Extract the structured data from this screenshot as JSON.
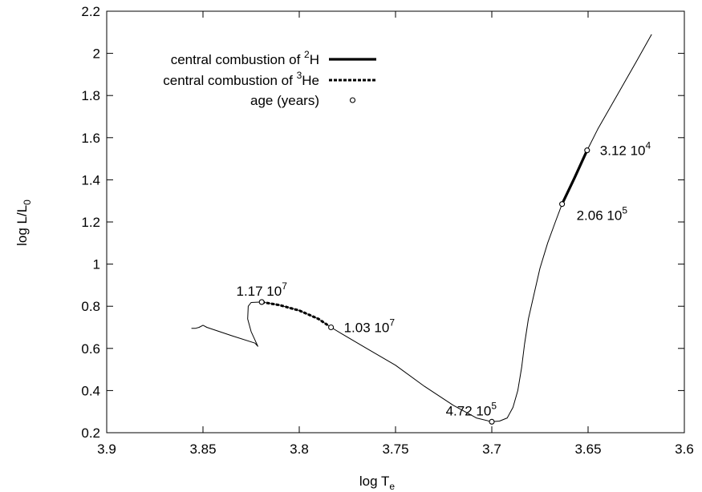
{
  "chart_data": {
    "type": "line",
    "xlabel": {
      "base": "log T",
      "sub": "e"
    },
    "ylabel": {
      "base": "log L/L",
      "sub": "0"
    },
    "xlim": [
      3.9,
      3.6
    ],
    "ylim": [
      0.2,
      2.2
    ],
    "x_reversed": true,
    "xticks": [
      3.9,
      3.85,
      3.8,
      3.75,
      3.7,
      3.65,
      3.6
    ],
    "xtick_labels": [
      "3.9",
      "3.85",
      "3.8",
      "3.75",
      "3.7",
      "3.65",
      "3.6"
    ],
    "yticks": [
      0.2,
      0.4,
      0.6,
      0.8,
      1.0,
      1.2,
      1.4,
      1.6,
      1.8,
      2.0,
      2.2
    ],
    "ytick_labels": [
      "0.2",
      "0.4",
      "0.6",
      "0.8",
      "1",
      "1.2",
      "1.4",
      "1.6",
      "1.8",
      "2",
      "2.2"
    ],
    "grid": false,
    "legend_position": "top-left",
    "legend": [
      {
        "key": "deuterium",
        "text": "central combustion of ",
        "sup": "2",
        "suffix": "H",
        "style": "solid-thick"
      },
      {
        "key": "helium3",
        "text": "central combustion of ",
        "sup": "3",
        "suffix": "He",
        "style": "dashed-thick"
      },
      {
        "key": "age",
        "text": "age (years)",
        "sup": "",
        "suffix": "",
        "style": "marker"
      }
    ],
    "series": [
      {
        "key": "track",
        "style": "thin",
        "x": [
          3.617,
          3.625,
          3.635,
          3.645,
          3.6505,
          3.657,
          3.6635,
          3.667,
          3.671,
          3.675,
          3.678,
          3.681,
          3.683,
          3.6845,
          3.6865,
          3.689,
          3.692,
          3.696,
          3.7,
          3.708,
          3.72,
          3.735,
          3.75,
          3.765,
          3.778,
          3.7835,
          3.79,
          3.8,
          3.81,
          3.8195,
          3.825,
          3.8265,
          3.8268,
          3.825,
          3.8215,
          3.823,
          3.835,
          3.848,
          3.85,
          3.852,
          3.854,
          3.856
        ],
        "y": [
          2.09,
          1.96,
          1.8,
          1.64,
          1.54,
          1.41,
          1.285,
          1.2,
          1.1,
          0.98,
          0.86,
          0.74,
          0.62,
          0.51,
          0.4,
          0.32,
          0.27,
          0.255,
          0.252,
          0.27,
          0.33,
          0.42,
          0.52,
          0.6,
          0.67,
          0.7,
          0.74,
          0.78,
          0.805,
          0.82,
          0.818,
          0.8,
          0.74,
          0.68,
          0.61,
          0.625,
          0.66,
          0.7,
          0.71,
          0.7,
          0.695,
          0.695
        ]
      },
      {
        "key": "deuterium",
        "style": "solid-thick",
        "x": [
          3.6505,
          3.657,
          3.6635
        ],
        "y": [
          1.54,
          1.41,
          1.285
        ]
      },
      {
        "key": "helium3",
        "style": "dashed-thick",
        "x": [
          3.8195,
          3.81,
          3.8,
          3.79,
          3.7835
        ],
        "y": [
          0.82,
          0.805,
          0.78,
          0.74,
          0.7
        ]
      }
    ],
    "age_points": [
      {
        "x": 3.6505,
        "y": 1.54,
        "label": "3.12 10",
        "exp": "4",
        "anchor": "right"
      },
      {
        "x": 3.6635,
        "y": 1.285,
        "label": "2.06 10",
        "exp": "5",
        "anchor": "below-right"
      },
      {
        "x": 3.7,
        "y": 0.252,
        "label": "4.72 10",
        "exp": "5",
        "anchor": "above-left"
      },
      {
        "x": 3.7835,
        "y": 0.7,
        "label": "1.03 10",
        "exp": "7",
        "anchor": "right"
      },
      {
        "x": 3.8195,
        "y": 0.82,
        "label": "1.17 10",
        "exp": "7",
        "anchor": "above"
      }
    ]
  }
}
